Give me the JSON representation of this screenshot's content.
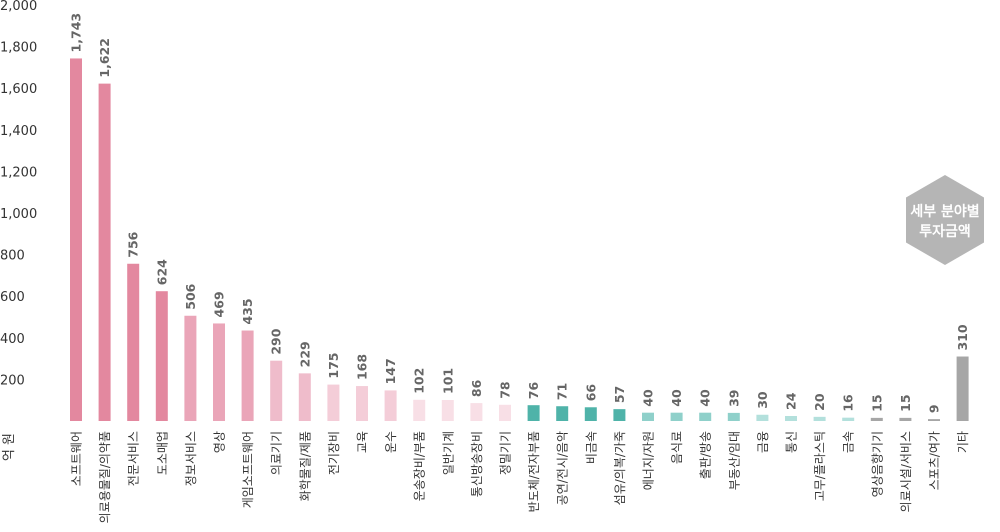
{
  "chart_data": {
    "type": "bar",
    "ylim": [
      0,
      2000
    ],
    "yticks": [
      "2,000",
      "1,800",
      "1,600",
      "1,400",
      "1,200",
      "1,000",
      "800",
      "600",
      "400",
      "200"
    ],
    "y_unit": "억 원",
    "grid": false,
    "categories": [
      "소프트웨어",
      "의료용물질/의약품",
      "전문서비스",
      "도소매업",
      "정보서비스",
      "영상",
      "게임소프트웨어",
      "의료기기",
      "화학물질/제품",
      "전기장비",
      "교육",
      "운수",
      "운송장비/부품",
      "일반기계",
      "통신방송장비",
      "정밀기기",
      "반도체/전자부품",
      "공연/전시/음악",
      "비금속",
      "섬유/의복/가죽",
      "에너지/자원",
      "음식료",
      "출판/방송",
      "부동산/임대",
      "금융",
      "통신",
      "고무/플라스틱",
      "금속",
      "영상음향기기",
      "의료시설/서비스",
      "스포츠/여가",
      "기타"
    ],
    "values": [
      1743,
      1622,
      756,
      624,
      506,
      469,
      435,
      290,
      229,
      175,
      168,
      147,
      102,
      101,
      86,
      78,
      76,
      71,
      66,
      57,
      40,
      40,
      40,
      39,
      30,
      24,
      20,
      16,
      15,
      15,
      9,
      310
    ],
    "value_labels": [
      "1,743",
      "1,622",
      "756",
      "624",
      "506",
      "469",
      "435",
      "290",
      "229",
      "175",
      "168",
      "147",
      "102",
      "101",
      "86",
      "78",
      "76",
      "71",
      "66",
      "57",
      "40",
      "40",
      "40",
      "39",
      "30",
      "24",
      "20",
      "16",
      "15",
      "15",
      "9",
      "310"
    ],
    "colors": [
      "#e3889f",
      "#e3889f",
      "#e3889f",
      "#e3889f",
      "#eaa5b8",
      "#eaa5b8",
      "#eaa5b8",
      "#efbccb",
      "#efbccb",
      "#f4cdd8",
      "#f4cdd8",
      "#f4cdd8",
      "#f8dfe6",
      "#f8dfe6",
      "#f8dfe6",
      "#f8dfe6",
      "#4fb3a9",
      "#4fb3a9",
      "#4fb3a9",
      "#4fb3a9",
      "#8fd0ca",
      "#8fd0ca",
      "#8fd0ca",
      "#8fd0ca",
      "#b3e0dc",
      "#b3e0dc",
      "#b3e0dc",
      "#b3e0dc",
      "#a6a6a6",
      "#a6a6a6",
      "#a6a6a6",
      "#a6a6a6"
    ],
    "badge": [
      "세부 분야별",
      "투자금액"
    ],
    "badge_color": "#b5b5b5"
  }
}
